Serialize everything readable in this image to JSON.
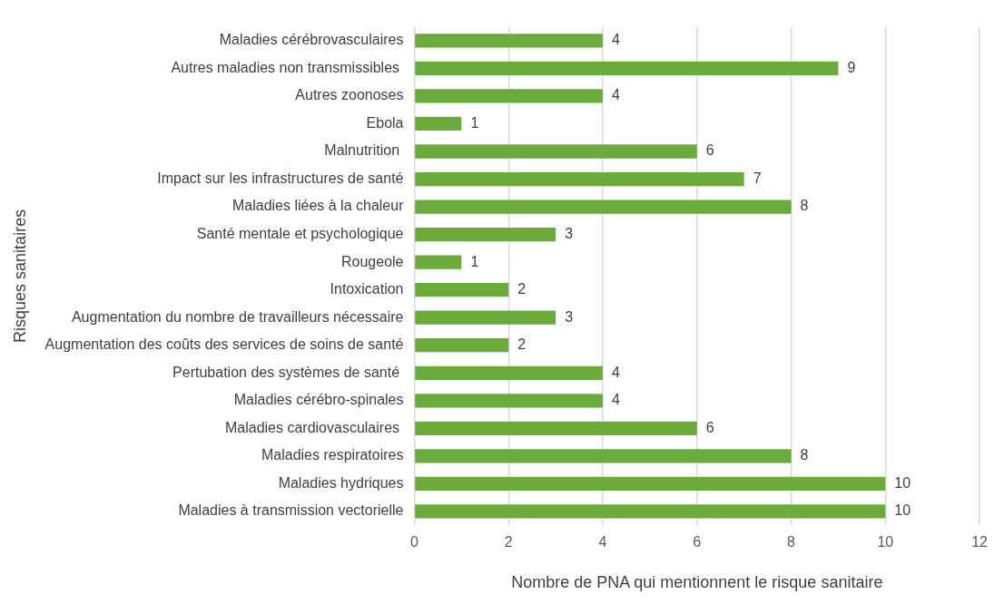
{
  "chart_data": {
    "type": "bar",
    "orientation": "horizontal",
    "xlabel": "Nombre de PNA qui mentionnent le risque sanitaire",
    "ylabel": "Risques sanitaires",
    "categories": [
      "Maladies cérébrovasculaires",
      "Autres maladies non transmissibles ",
      "Autres zoonoses",
      "Ebola",
      "Malnutrition ",
      "Impact sur les infrastructures de santé",
      "Maladies liées à la chaleur",
      "Santé mentale et psychologique",
      "Rougeole",
      "Intoxication",
      "Augmentation du nombre de travailleurs nécessaire",
      "Augmentation des coûts des services de soins de santé",
      "Pertubation des systèmes de santé ",
      "Maladies cérébro-spinales",
      "Maladies cardiovasculaires ",
      "Maladies respiratoires",
      "Maladies hydriques",
      "Maladies à transmission vectorielle"
    ],
    "values": [
      4,
      9,
      4,
      1,
      6,
      7,
      8,
      3,
      1,
      2,
      3,
      2,
      4,
      4,
      6,
      8,
      10,
      10
    ],
    "color": "#6aab3c",
    "xlim": [
      0,
      12
    ],
    "xticks": [
      0,
      2,
      4,
      6,
      8,
      10,
      12
    ],
    "grid": "x",
    "data_labels": true,
    "legend": false
  }
}
